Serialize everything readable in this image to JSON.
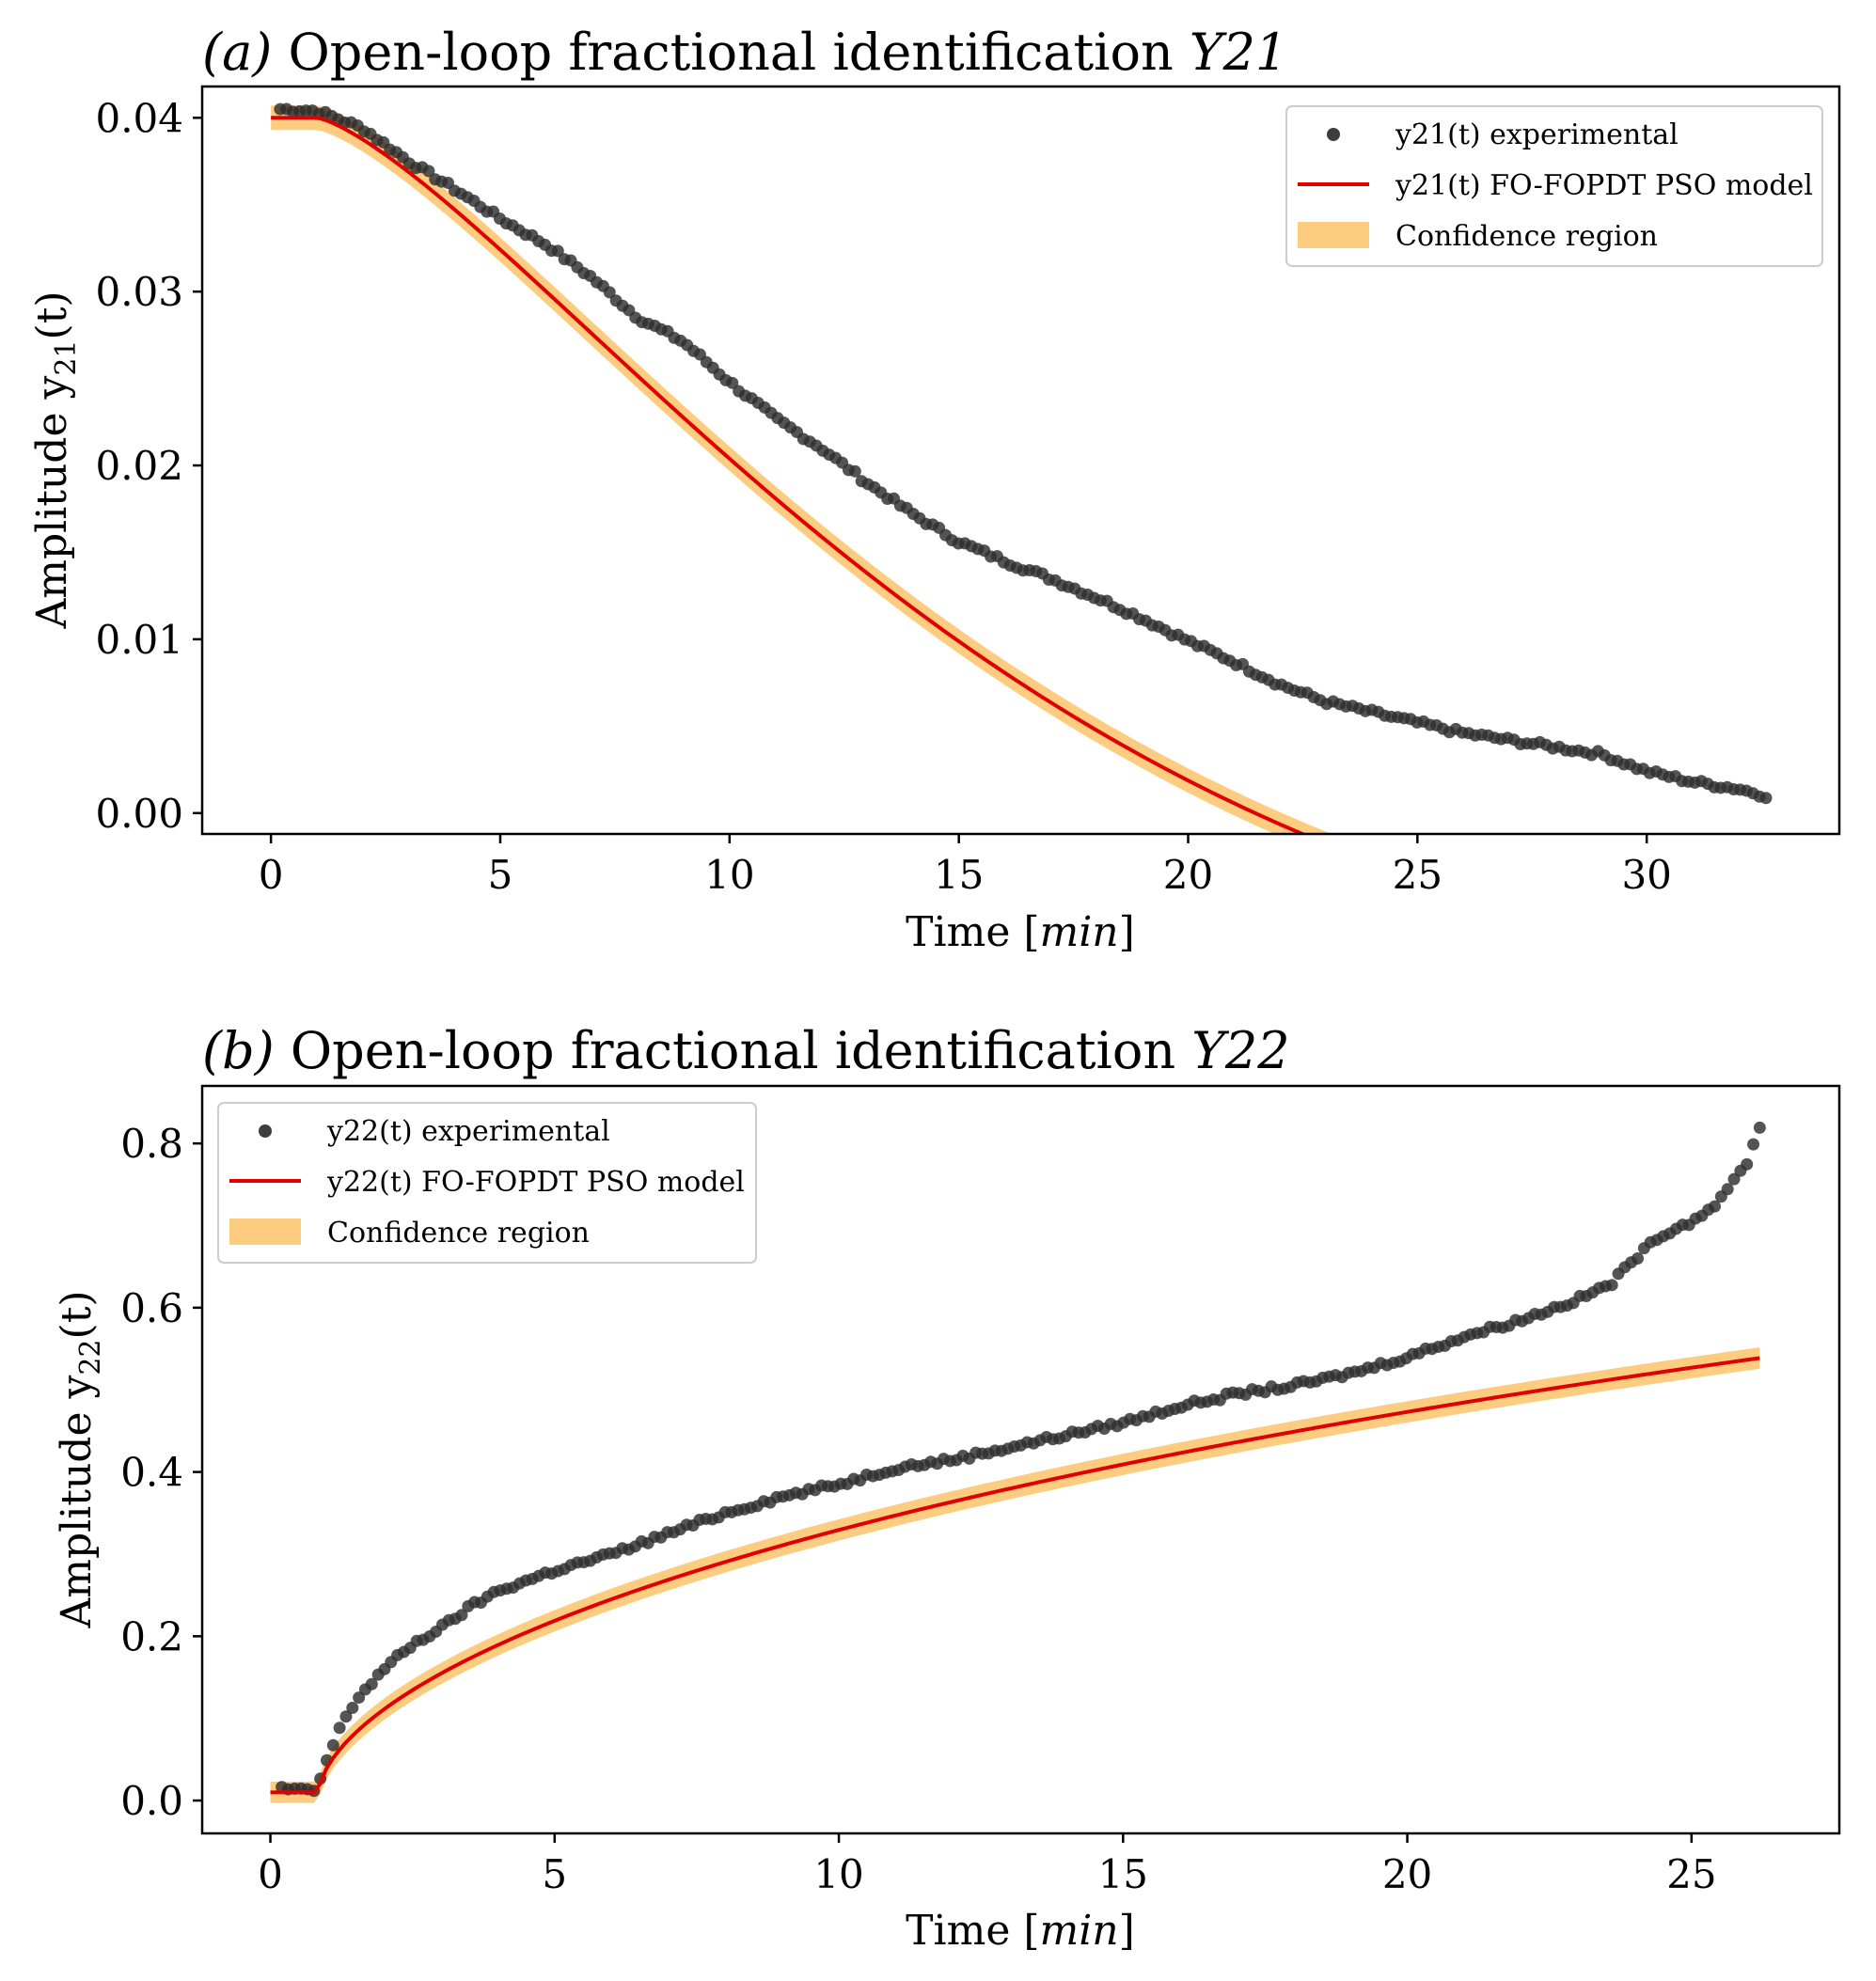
{
  "chart_data": [
    {
      "type": "scatter",
      "title_tag": "(a)",
      "title_text": "Open-loop fractional identification",
      "title_var": "Y21",
      "xlabel_prefix": "Time [",
      "xlabel_unit": "min",
      "xlabel_suffix": "]",
      "ylabel_prefix": "Amplitude y",
      "ylabel_sub": "21",
      "ylabel_suffix": "(t)",
      "xlim": [
        -1.5,
        34.2
      ],
      "ylim": [
        -0.0012,
        0.0418
      ],
      "xticks": [
        0,
        5,
        10,
        15,
        20,
        25,
        30
      ],
      "xtick_labels": [
        "0",
        "5",
        "10",
        "15",
        "20",
        "25",
        "30"
      ],
      "yticks": [
        0.0,
        0.01,
        0.02,
        0.03,
        0.04
      ],
      "ytick_labels": [
        "0.00",
        "0.01",
        "0.02",
        "0.03",
        "0.04"
      ],
      "legend_position": "upper-right",
      "legend": [
        {
          "kind": "marker",
          "label": "y21(t) experimental"
        },
        {
          "kind": "line",
          "label": "y21(t) FO-FOPDT PSO model"
        },
        {
          "kind": "patch",
          "label": "Confidence region"
        }
      ],
      "model": {
        "x0": 0.0,
        "x1": 32.0,
        "delay": 1.0,
        "y_start": 0.04,
        "y_final": -0.0132,
        "tau": 16.0,
        "alpha": 1.35
      },
      "band_halfwidth": 0.0007,
      "series": [
        {
          "name": "y21(t) experimental",
          "x": [
            0.2,
            1.0,
            2.0,
            3.0,
            4.0,
            5.0,
            6.0,
            7.0,
            8.0,
            9.0,
            10.0,
            11.0,
            12.0,
            13.0,
            14.0,
            15.0,
            16.0,
            17.0,
            18.0,
            19.0,
            20.0,
            21.0,
            22.0,
            23.0,
            24.0,
            25.0,
            26.0,
            27.0,
            28.0,
            29.0,
            30.0,
            31.0,
            32.0,
            32.6
          ],
          "y": [
            0.0405,
            0.0404,
            0.0394,
            0.0375,
            0.0359,
            0.0342,
            0.0327,
            0.0308,
            0.0285,
            0.0271,
            0.0248,
            0.0227,
            0.021,
            0.019,
            0.0172,
            0.0156,
            0.0145,
            0.0135,
            0.0124,
            0.0112,
            0.0099,
            0.0087,
            0.0074,
            0.0064,
            0.0058,
            0.0052,
            0.0046,
            0.0042,
            0.0038,
            0.0034,
            0.0024,
            0.0018,
            0.0014,
            0.001
          ]
        }
      ]
    },
    {
      "type": "scatter",
      "title_tag": "(b)",
      "title_text": "Open-loop fractional identification",
      "title_var": "Y22",
      "xlabel_prefix": "Time [",
      "xlabel_unit": "min",
      "xlabel_suffix": "]",
      "ylabel_prefix": "Amplitude y",
      "ylabel_sub": "22",
      "ylabel_suffix": "(t)",
      "xlim": [
        -1.2,
        27.6
      ],
      "ylim": [
        -0.04,
        0.87
      ],
      "xticks": [
        0,
        5,
        10,
        15,
        20,
        25
      ],
      "xtick_labels": [
        "0",
        "5",
        "10",
        "15",
        "20",
        "25"
      ],
      "yticks": [
        0.0,
        0.2,
        0.4,
        0.6,
        0.8
      ],
      "ytick_labels": [
        "0.0",
        "0.2",
        "0.4",
        "0.6",
        "0.8"
      ],
      "legend_position": "upper-left",
      "legend": [
        {
          "kind": "marker",
          "label": "y22(t) experimental"
        },
        {
          "kind": "line",
          "label": "y22(t) FO-FOPDT PSO model"
        },
        {
          "kind": "patch",
          "label": "Confidence region"
        }
      ],
      "model": {
        "x0": 0.0,
        "x1": 26.2,
        "delay": 0.85,
        "y_start": 0.01,
        "y_final": 1.35,
        "tau": 80.0,
        "alpha": 0.6
      },
      "band_halfwidth": 0.013,
      "series": [
        {
          "name": "y22(t) experimental",
          "x": [
            0.2,
            0.5,
            0.8,
            1.0,
            1.3,
            1.6,
            2.0,
            2.5,
            3.0,
            3.5,
            4.0,
            5.0,
            6.0,
            7.0,
            8.0,
            9.0,
            10.0,
            11.0,
            12.0,
            13.0,
            14.0,
            15.0,
            16.0,
            17.0,
            18.0,
            19.0,
            20.0,
            21.0,
            22.0,
            23.0,
            23.6,
            24.0,
            24.5,
            25.0,
            25.5,
            26.0,
            26.2
          ],
          "y": [
            0.015,
            0.012,
            0.012,
            0.05,
            0.1,
            0.13,
            0.16,
            0.19,
            0.21,
            0.235,
            0.255,
            0.28,
            0.3,
            0.325,
            0.35,
            0.37,
            0.385,
            0.405,
            0.415,
            0.43,
            0.445,
            0.46,
            0.48,
            0.495,
            0.505,
            0.52,
            0.54,
            0.565,
            0.585,
            0.61,
            0.63,
            0.66,
            0.69,
            0.705,
            0.73,
            0.78,
            0.82
          ]
        }
      ]
    }
  ]
}
